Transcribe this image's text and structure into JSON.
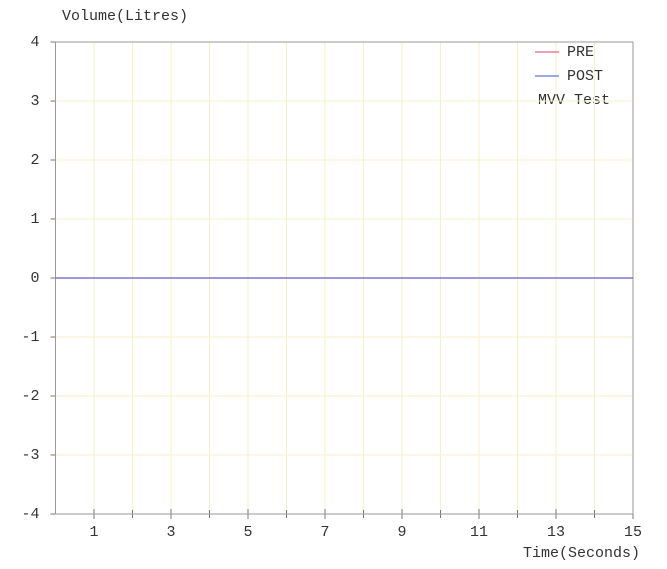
{
  "chart_data": {
    "type": "line",
    "y_label": "Volume(Litres)",
    "x_label": "Time(Seconds)",
    "annotation": "MVV Test",
    "x": [
      0,
      15
    ],
    "series": [
      {
        "name": "PRE",
        "color": "#e0648c",
        "values": [
          0,
          0
        ]
      },
      {
        "name": "POST",
        "color": "#6474d4",
        "values": [
          0,
          0
        ]
      }
    ],
    "xlim": [
      0,
      15
    ],
    "xticks": [
      1,
      3,
      5,
      7,
      9,
      11,
      13,
      15
    ],
    "xminorticks": [
      2,
      4,
      6,
      8,
      10,
      12,
      14
    ],
    "ylim": [
      -4,
      4
    ],
    "yticks": [
      -4,
      -3,
      -2,
      -1,
      0,
      1,
      2,
      3,
      4
    ],
    "grid": true,
    "grid_color": "#f6f0c8",
    "legend": "upper right"
  }
}
